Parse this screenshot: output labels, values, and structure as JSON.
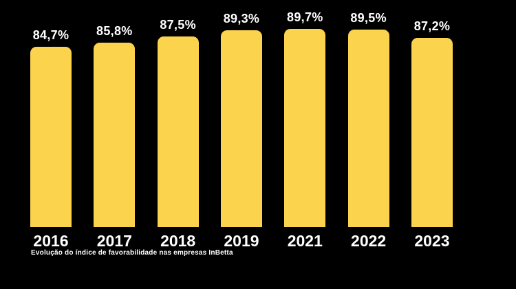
{
  "chart_data": {
    "type": "bar",
    "categories": [
      "2016",
      "2017",
      "2018",
      "2019",
      "2021",
      "2022",
      "2023"
    ],
    "values": [
      84.7,
      85.8,
      87.5,
      89.3,
      89.7,
      89.5,
      87.2
    ],
    "value_labels": [
      "84,7%",
      "85,8%",
      "87,5%",
      "89,3%",
      "89,7%",
      "89,5%",
      "87,2%"
    ],
    "title": "",
    "xlabel": "",
    "ylabel": "",
    "ylim": [
      84,
      90.5
    ],
    "grid": false,
    "legend": false,
    "axes_visible": false
  },
  "caption": "Evolução do índice de favorabilidade nas empresas InBetta",
  "colors": {
    "background": "#000000",
    "bar": "#FCD34D",
    "value_label": "#FFFFFF",
    "tick_label": "#FFFFFF",
    "caption_text": "#FFFFFF"
  }
}
